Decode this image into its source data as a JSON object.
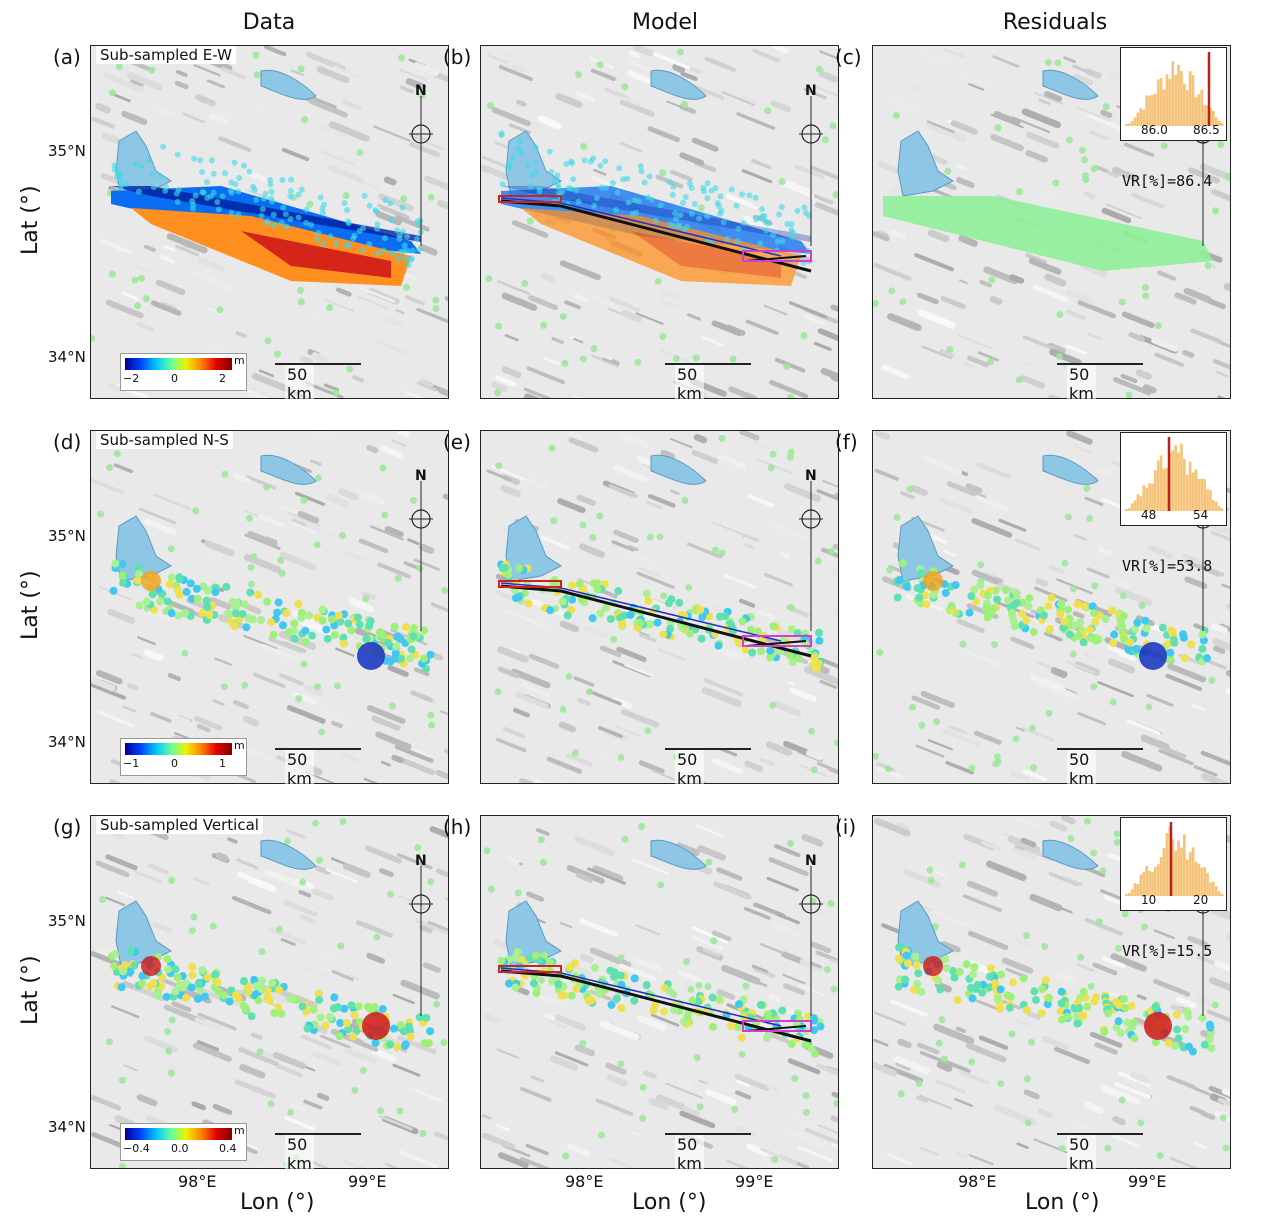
{
  "columns": {
    "data": "Data",
    "model": "Model",
    "residuals": "Residuals"
  },
  "panel_labels": [
    "(a)",
    "(b)",
    "(c)",
    "(d)",
    "(e)",
    "(f)",
    "(g)",
    "(h)",
    "(i)"
  ],
  "subtitles": {
    "ew": "Sub-sampled E-W",
    "ns": "Sub-sampled N-S",
    "vert": "Sub-sampled Vertical"
  },
  "scalebar": "50 km",
  "north": "N",
  "axes": {
    "ylabel": "Lat (°)",
    "xlabel": "Lon (°)",
    "lat_ticks": [
      "35°N",
      "34°N"
    ],
    "lon_ticks": [
      "98°E",
      "99°E"
    ]
  },
  "colorbars": [
    {
      "unit": "m",
      "min": "−2",
      "mid": "0",
      "max": "2"
    },
    {
      "unit": "m",
      "min": "−1",
      "mid": "0",
      "max": "1"
    },
    {
      "unit": "m",
      "min": "−0.4",
      "mid": "0.0",
      "max": "0.4"
    }
  ],
  "insets": [
    {
      "vr": "VR[%]=86.4",
      "ticks": [
        "86.0",
        "86.5"
      ]
    },
    {
      "vr": "VR[%]=53.8",
      "ticks": [
        "48",
        "54"
      ]
    },
    {
      "vr": "VR[%]=15.5",
      "ticks": [
        "10",
        "20"
      ]
    }
  ],
  "colors": {
    "lake": "#8ec7e6",
    "fault": "#111111",
    "fault_box": "#d040d0",
    "inset_bar": "#f5c47a",
    "inset_line": "#c0201a"
  }
}
